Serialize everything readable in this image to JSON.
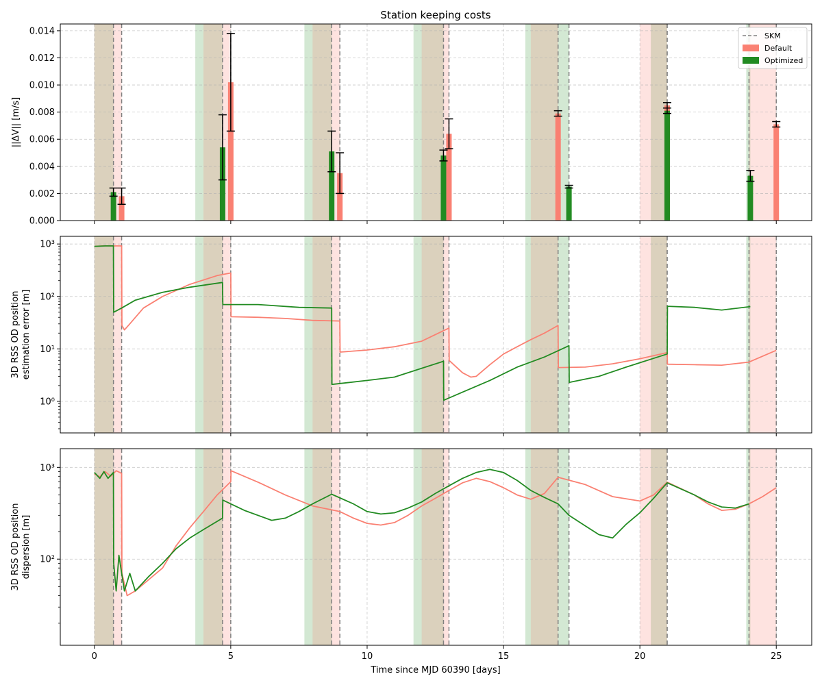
{
  "chart_data": {
    "type": "bar+line",
    "title": "Station keeping costs",
    "xlabel": "Time since MJD 60390 [days]",
    "xlim": [
      -1.25,
      26.3
    ],
    "xticks": [
      0,
      5,
      10,
      15,
      20,
      25
    ],
    "xtick_labels": [
      "0",
      "5",
      "10",
      "15",
      "20",
      "25"
    ],
    "grid": true,
    "colors": {
      "default": "#fa8072",
      "optimized": "#228b22",
      "skm": "#808080",
      "tracking_default": "#fa8072",
      "tracking_optimized": "#228b22"
    },
    "skm_epochs": [
      0.7,
      1.0,
      4.7,
      5.0,
      8.7,
      9.0,
      12.8,
      13.0,
      17.0,
      17.4,
      21.0,
      21.0,
      24.0,
      25.0
    ],
    "tracking_optimized": [
      [
        0,
        0.7
      ],
      [
        3.7,
        4.7
      ],
      [
        7.7,
        8.7
      ],
      [
        11.7,
        12.8
      ],
      [
        15.8,
        17.4
      ],
      [
        20.4,
        21.0
      ],
      [
        23.9,
        24.05
      ]
    ],
    "tracking_default": [
      [
        0,
        1.0
      ],
      [
        4.0,
        5.0
      ],
      [
        8.0,
        9.0
      ],
      [
        12.0,
        13.0
      ],
      [
        16.0,
        17.0
      ],
      [
        20.0,
        21.0
      ],
      [
        24.0,
        25.0
      ]
    ],
    "panels": [
      {
        "type": "bar",
        "ylabel": "||ΔV|| [m/s]",
        "ylim": [
          0,
          0.0145
        ],
        "yticks": [
          0,
          0.002,
          0.004,
          0.006,
          0.008,
          0.01,
          0.012,
          0.014
        ],
        "ytick_labels": [
          "0.000",
          "0.002",
          "0.004",
          "0.006",
          "0.008",
          "0.010",
          "0.012",
          "0.014"
        ],
        "legend_loc": "upper right",
        "series": [
          {
            "name": "Default",
            "x": [
              1.0,
              5.0,
              9.0,
              13.0,
              17.0,
              21.0,
              25.0
            ],
            "values": [
              0.0018,
              0.0102,
              0.0035,
              0.0064,
              0.0079,
              0.0085,
              0.0071
            ],
            "err": [
              0.0006,
              0.0036,
              0.0015,
              0.0011,
              0.0002,
              0.0002,
              0.0002
            ]
          },
          {
            "name": "Optimized",
            "x": [
              0.7,
              4.7,
              8.7,
              12.8,
              17.4,
              21.0,
              24.05
            ],
            "values": [
              0.0021,
              0.0054,
              0.0051,
              0.0048,
              0.0025,
              0.0081,
              0.0033
            ],
            "err": [
              0.0003,
              0.0024,
              0.0015,
              0.0004,
              0.0001,
              0.0002,
              0.0004
            ]
          }
        ],
        "legend": [
          "SKM",
          "Default",
          "Optimized"
        ]
      },
      {
        "type": "line",
        "ylabel": "3D RSS OD position\nestimation error [m]",
        "yscale": "log",
        "ylim": [
          0.25,
          1400
        ],
        "yticks": [
          1,
          10,
          100,
          1000
        ],
        "ytick_labels": [
          "10⁰",
          "10¹",
          "10²",
          "10³"
        ],
        "series": [
          {
            "name": "Default",
            "points": [
              [
                0,
                900
              ],
              [
                0.3,
                920
              ],
              [
                1.0,
                920
              ],
              [
                1.01,
                28
              ],
              [
                1.1,
                23
              ],
              [
                1.3,
                30
              ],
              [
                1.8,
                60
              ],
              [
                2.5,
                100
              ],
              [
                3.5,
                170
              ],
              [
                4.5,
                250
              ],
              [
                5.0,
                280
              ],
              [
                5.01,
                41
              ],
              [
                6.0,
                40
              ],
              [
                7.0,
                38
              ],
              [
                8.0,
                35
              ],
              [
                9.0,
                34
              ],
              [
                9.01,
                8.7
              ],
              [
                10.0,
                9.5
              ],
              [
                11.0,
                11
              ],
              [
                12.0,
                14
              ],
              [
                13.0,
                25
              ],
              [
                13.01,
                6
              ],
              [
                13.5,
                3.5
              ],
              [
                13.8,
                2.9
              ],
              [
                14.0,
                3.0
              ],
              [
                14.5,
                5
              ],
              [
                15.0,
                8
              ],
              [
                15.5,
                11
              ],
              [
                16.0,
                15
              ],
              [
                16.5,
                20
              ],
              [
                17.0,
                28
              ],
              [
                17.01,
                4.4
              ],
              [
                18.0,
                4.5
              ],
              [
                19.0,
                5.2
              ],
              [
                20.0,
                6.5
              ],
              [
                21.0,
                8.5
              ],
              [
                21.01,
                5.1
              ],
              [
                22.0,
                5.0
              ],
              [
                23.0,
                4.9
              ],
              [
                24.0,
                5.6
              ],
              [
                25.0,
                9.4
              ]
            ]
          },
          {
            "name": "Optimized",
            "points": [
              [
                0,
                900
              ],
              [
                0.4,
                920
              ],
              [
                0.7,
                920
              ],
              [
                0.71,
                50
              ],
              [
                1.0,
                60
              ],
              [
                1.5,
                85
              ],
              [
                2.5,
                120
              ],
              [
                3.5,
                150
              ],
              [
                4.7,
                185
              ],
              [
                4.71,
                70
              ],
              [
                6.0,
                70
              ],
              [
                7.5,
                62
              ],
              [
                8.7,
                60
              ],
              [
                8.71,
                2.1
              ],
              [
                10.0,
                2.5
              ],
              [
                11.0,
                2.9
              ],
              [
                12.8,
                5.8
              ],
              [
                12.81,
                1.05
              ],
              [
                13.5,
                1.5
              ],
              [
                14.5,
                2.5
              ],
              [
                15.5,
                4.5
              ],
              [
                16.5,
                7
              ],
              [
                17.4,
                11.5
              ],
              [
                17.41,
                2.3
              ],
              [
                18.5,
                3
              ],
              [
                19.5,
                4.5
              ],
              [
                21.0,
                8
              ],
              [
                21.01,
                65
              ],
              [
                22.0,
                62
              ],
              [
                23.0,
                55
              ],
              [
                24.05,
                64
              ]
            ]
          }
        ]
      },
      {
        "type": "line",
        "ylabel": "3D RSS OD position\ndispersion [m]",
        "yscale": "log",
        "ylim": [
          11.5,
          1600
        ],
        "yticks": [
          100,
          1000
        ],
        "ytick_labels": [
          "10²",
          "10³"
        ],
        "series": [
          {
            "name": "Default",
            "points": [
              [
                0,
                850
              ],
              [
                0.2,
                790
              ],
              [
                0.4,
                900
              ],
              [
                0.6,
                800
              ],
              [
                0.8,
                920
              ],
              [
                1.0,
                860
              ],
              [
                1.01,
                70
              ],
              [
                1.2,
                40
              ],
              [
                1.5,
                45
              ],
              [
                2.0,
                60
              ],
              [
                2.5,
                80
              ],
              [
                3.0,
                140
              ],
              [
                3.5,
                220
              ],
              [
                4.0,
                330
              ],
              [
                4.5,
                500
              ],
              [
                5.0,
                700
              ],
              [
                5.01,
                920
              ],
              [
                6.0,
                690
              ],
              [
                7.0,
                500
              ],
              [
                8.0,
                380
              ],
              [
                9.0,
                330
              ],
              [
                9.5,
                280
              ],
              [
                10.0,
                245
              ],
              [
                10.5,
                235
              ],
              [
                11.0,
                250
              ],
              [
                11.5,
                300
              ],
              [
                12.0,
                380
              ],
              [
                12.5,
                460
              ],
              [
                13.0,
                560
              ],
              [
                13.5,
                680
              ],
              [
                14.0,
                760
              ],
              [
                14.5,
                700
              ],
              [
                15.0,
                600
              ],
              [
                15.5,
                500
              ],
              [
                16.0,
                450
              ],
              [
                16.5,
                520
              ],
              [
                17.0,
                780
              ],
              [
                18.0,
                650
              ],
              [
                19.0,
                480
              ],
              [
                20.0,
                430
              ],
              [
                20.5,
                500
              ],
              [
                21.0,
                690
              ],
              [
                22.0,
                500
              ],
              [
                22.5,
                400
              ],
              [
                23.0,
                340
              ],
              [
                23.5,
                350
              ],
              [
                24.0,
                400
              ],
              [
                24.5,
                480
              ],
              [
                25.0,
                600
              ]
            ]
          },
          {
            "name": "Optimized",
            "points": [
              [
                0,
                880
              ],
              [
                0.2,
                760
              ],
              [
                0.35,
                900
              ],
              [
                0.5,
                760
              ],
              [
                0.7,
                880
              ],
              [
                0.71,
                90
              ],
              [
                0.8,
                45
              ],
              [
                0.9,
                110
              ],
              [
                1.1,
                45
              ],
              [
                1.3,
                70
              ],
              [
                1.5,
                45
              ],
              [
                2.0,
                65
              ],
              [
                2.5,
                90
              ],
              [
                3.0,
                130
              ],
              [
                3.5,
                170
              ],
              [
                4.0,
                210
              ],
              [
                4.7,
                280
              ],
              [
                4.71,
                440
              ],
              [
                5.5,
                340
              ],
              [
                6.5,
                265
              ],
              [
                7.0,
                280
              ],
              [
                7.5,
                330
              ],
              [
                8.0,
                400
              ],
              [
                8.7,
                510
              ],
              [
                9.5,
                400
              ],
              [
                10.0,
                330
              ],
              [
                10.5,
                310
              ],
              [
                11.0,
                320
              ],
              [
                11.5,
                360
              ],
              [
                12.0,
                420
              ],
              [
                12.5,
                520
              ],
              [
                13.0,
                630
              ],
              [
                13.5,
                760
              ],
              [
                14.0,
                880
              ],
              [
                14.5,
                950
              ],
              [
                15.0,
                880
              ],
              [
                15.5,
                720
              ],
              [
                16.0,
                560
              ],
              [
                16.5,
                470
              ],
              [
                17.0,
                400
              ],
              [
                17.4,
                300
              ],
              [
                18.0,
                230
              ],
              [
                18.5,
                185
              ],
              [
                19.0,
                170
              ],
              [
                19.5,
                240
              ],
              [
                20.0,
                320
              ],
              [
                20.5,
                460
              ],
              [
                21.0,
                680
              ],
              [
                22.0,
                500
              ],
              [
                22.5,
                420
              ],
              [
                23.0,
                370
              ],
              [
                23.5,
                360
              ],
              [
                24.0,
                400
              ]
            ]
          }
        ]
      }
    ]
  }
}
